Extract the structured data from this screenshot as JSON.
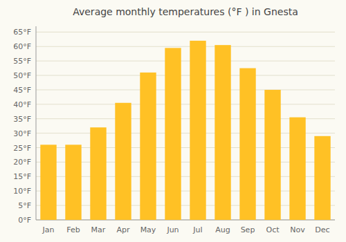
{
  "chart_data": {
    "type": "bar",
    "title": "Average monthly temperatures (°F ) in Gnesta",
    "categories": [
      "Jan",
      "Feb",
      "Mar",
      "Apr",
      "May",
      "Jun",
      "Jul",
      "Aug",
      "Sep",
      "Oct",
      "Nov",
      "Dec"
    ],
    "values": [
      26,
      26,
      32,
      40.5,
      51,
      59.5,
      62,
      60.5,
      52.5,
      45,
      35.5,
      29
    ],
    "color": "#FFC125",
    "ylim": [
      0,
      67
    ],
    "yticks": [
      {
        "value": 0,
        "label": "0°F"
      },
      {
        "value": 5,
        "label": "5°F"
      },
      {
        "value": 10,
        "label": "10°F"
      },
      {
        "value": 15,
        "label": "15°F"
      },
      {
        "value": 20,
        "label": "20°F"
      },
      {
        "value": 25,
        "label": "25°F"
      },
      {
        "value": 30,
        "label": "30°F"
      },
      {
        "value": 35,
        "label": "35°F"
      },
      {
        "value": 40,
        "label": "40°F"
      },
      {
        "value": 45,
        "label": "45°F"
      },
      {
        "value": 50,
        "label": "50°F"
      },
      {
        "value": 55,
        "label": "55°F"
      },
      {
        "value": 60,
        "label": "60°F"
      },
      {
        "value": 65,
        "label": "65°F"
      }
    ],
    "grid": true
  }
}
